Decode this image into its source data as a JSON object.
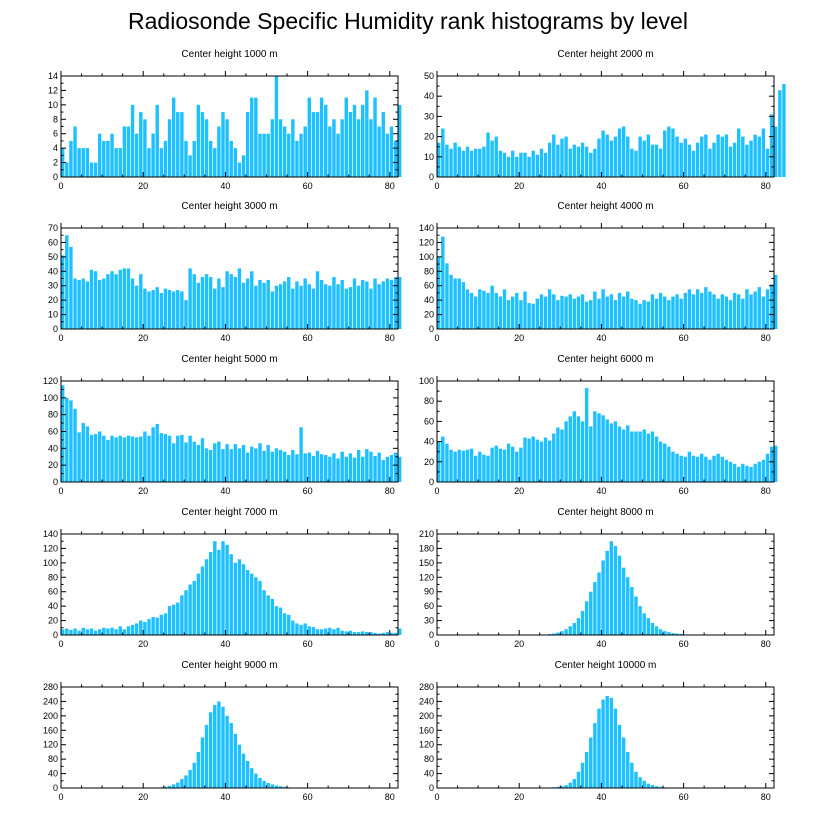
{
  "title": "Radiosonde Specific Humidity rank histograms by level",
  "bar_color": "#1ec0ff",
  "chart_data": [
    {
      "type": "bar",
      "title": "Center height 1000 m",
      "xlabel": "",
      "ylabel": "",
      "xlim": [
        0,
        82
      ],
      "ylim": [
        0,
        14
      ],
      "xticks": [
        0,
        20,
        40,
        60,
        80
      ],
      "yticks": [
        0,
        2,
        4,
        6,
        8,
        10,
        12,
        14
      ],
      "values": [
        4,
        2,
        5,
        7,
        4,
        4,
        4,
        2,
        2,
        6,
        5,
        5,
        6,
        4,
        4,
        7,
        7,
        10,
        6,
        9,
        8,
        4,
        6,
        10,
        4,
        5,
        8,
        11,
        9,
        9,
        5,
        3,
        5,
        10,
        9,
        8,
        5,
        4,
        7,
        9,
        8,
        5,
        4,
        2,
        3,
        9,
        11,
        11,
        6,
        6,
        6,
        8,
        14,
        8,
        7,
        6,
        8,
        5,
        6,
        7,
        11,
        9,
        9,
        11,
        10,
        7,
        8,
        6,
        8,
        11,
        9,
        10,
        8,
        10,
        12,
        8,
        11,
        7,
        9,
        6,
        7,
        5,
        10
      ]
    },
    {
      "type": "bar",
      "title": "Center height 2000 m",
      "xlabel": "",
      "ylabel": "",
      "xlim": [
        0,
        82
      ],
      "ylim": [
        0,
        50
      ],
      "xticks": [
        0,
        20,
        40,
        60,
        80
      ],
      "yticks": [
        0,
        10,
        20,
        30,
        40,
        50
      ],
      "values": [
        17,
        24,
        16,
        14,
        17,
        15,
        13,
        15,
        13,
        14,
        14,
        15,
        22,
        18,
        20,
        13,
        12,
        10,
        13,
        10,
        12,
        12,
        10,
        13,
        11,
        14,
        12,
        17,
        21,
        16,
        19,
        20,
        14,
        16,
        15,
        17,
        15,
        12,
        14,
        19,
        23,
        21,
        18,
        20,
        24,
        25,
        20,
        14,
        13,
        20,
        18,
        21,
        16,
        16,
        14,
        23,
        25,
        24,
        20,
        17,
        19,
        16,
        13,
        17,
        20,
        21,
        14,
        17,
        21,
        20,
        21,
        15,
        17,
        24,
        20,
        16,
        18,
        21,
        20,
        24,
        14,
        31,
        25,
        43,
        46
      ]
    },
    {
      "type": "bar",
      "title": "Center height 3000 m",
      "xlabel": "",
      "ylabel": "",
      "xlim": [
        0,
        82
      ],
      "ylim": [
        0,
        70
      ],
      "xticks": [
        0,
        20,
        40,
        60,
        80
      ],
      "yticks": [
        0,
        10,
        20,
        30,
        40,
        50,
        60,
        70
      ],
      "values": [
        51,
        65,
        57,
        35,
        34,
        35,
        33,
        41,
        40,
        34,
        35,
        38,
        40,
        38,
        41,
        42,
        42,
        35,
        30,
        38,
        28,
        26,
        27,
        29,
        25,
        28,
        27,
        26,
        27,
        26,
        20,
        42,
        38,
        32,
        36,
        38,
        36,
        28,
        35,
        29,
        40,
        38,
        36,
        42,
        32,
        35,
        40,
        30,
        34,
        32,
        34,
        26,
        30,
        31,
        33,
        36,
        28,
        33,
        30,
        35,
        31,
        28,
        40,
        34,
        31,
        30,
        36,
        31,
        34,
        28,
        29,
        35,
        30,
        34,
        33,
        28,
        35,
        31,
        33,
        35,
        34,
        36,
        36
      ]
    },
    {
      "type": "bar",
      "title": "Center height 4000 m",
      "xlabel": "",
      "ylabel": "",
      "xlim": [
        0,
        82
      ],
      "ylim": [
        0,
        140
      ],
      "xticks": [
        0,
        20,
        40,
        60,
        80
      ],
      "yticks": [
        0,
        20,
        40,
        60,
        80,
        100,
        120,
        140
      ],
      "values": [
        100,
        128,
        91,
        75,
        70,
        70,
        65,
        55,
        50,
        45,
        55,
        53,
        50,
        60,
        50,
        45,
        55,
        40,
        45,
        50,
        40,
        52,
        36,
        35,
        42,
        48,
        45,
        55,
        48,
        40,
        46,
        45,
        48,
        42,
        45,
        48,
        38,
        40,
        52,
        42,
        55,
        45,
        48,
        40,
        50,
        45,
        52,
        42,
        40,
        35,
        40,
        38,
        48,
        42,
        50,
        45,
        40,
        45,
        48,
        42,
        50,
        55,
        48,
        55,
        50,
        58,
        52,
        48,
        42,
        48,
        45,
        40,
        50,
        48,
        42,
        55,
        48,
        52,
        58,
        45,
        55,
        62,
        75
      ]
    },
    {
      "type": "bar",
      "title": "Center height 5000 m",
      "xlabel": "",
      "ylabel": "",
      "xlim": [
        0,
        82
      ],
      "ylim": [
        0,
        120
      ],
      "xticks": [
        0,
        20,
        40,
        60,
        80
      ],
      "yticks": [
        0,
        20,
        40,
        60,
        80,
        100,
        120
      ],
      "values": [
        115,
        100,
        97,
        87,
        59,
        70,
        66,
        56,
        57,
        60,
        55,
        50,
        55,
        53,
        55,
        53,
        55,
        54,
        53,
        54,
        60,
        55,
        65,
        69,
        58,
        57,
        55,
        46,
        55,
        56,
        47,
        55,
        48,
        44,
        52,
        40,
        38,
        46,
        48,
        39,
        45,
        39,
        45,
        40,
        44,
        35,
        42,
        40,
        46,
        37,
        44,
        36,
        40,
        38,
        36,
        32,
        38,
        33,
        65,
        34,
        35,
        31,
        37,
        33,
        32,
        30,
        34,
        28,
        36,
        30,
        34,
        29,
        38,
        30,
        39,
        36,
        31,
        35,
        26,
        30,
        32,
        35,
        30
      ]
    },
    {
      "type": "bar",
      "title": "Center height 6000 m",
      "xlabel": "",
      "ylabel": "",
      "xlim": [
        0,
        82
      ],
      "ylim": [
        0,
        100
      ],
      "xticks": [
        0,
        20,
        40,
        60,
        80
      ],
      "yticks": [
        0,
        20,
        40,
        60,
        80,
        100
      ],
      "values": [
        40,
        45,
        38,
        32,
        30,
        32,
        31,
        32,
        33,
        26,
        30,
        27,
        26,
        34,
        36,
        33,
        32,
        38,
        35,
        30,
        34,
        44,
        43,
        45,
        42,
        40,
        44,
        41,
        48,
        54,
        52,
        60,
        65,
        70,
        65,
        60,
        93,
        55,
        70,
        68,
        66,
        62,
        58,
        60,
        55,
        52,
        56,
        50,
        50,
        50,
        52,
        48,
        50,
        45,
        40,
        38,
        35,
        30,
        28,
        26,
        25,
        30,
        26,
        25,
        28,
        25,
        22,
        26,
        28,
        25,
        22,
        20,
        18,
        15,
        18,
        16,
        15,
        18,
        20,
        22,
        28,
        35,
        36
      ]
    },
    {
      "type": "bar",
      "title": "Center height 7000 m",
      "xlabel": "",
      "ylabel": "",
      "xlim": [
        0,
        82
      ],
      "ylim": [
        0,
        140
      ],
      "xticks": [
        0,
        20,
        40,
        60,
        80
      ],
      "yticks": [
        0,
        20,
        40,
        60,
        80,
        100,
        120,
        140
      ],
      "values": [
        8,
        9,
        7,
        9,
        6,
        10,
        8,
        9,
        6,
        8,
        10,
        9,
        10,
        8,
        12,
        8,
        12,
        14,
        16,
        20,
        18,
        22,
        25,
        24,
        28,
        30,
        40,
        42,
        45,
        55,
        62,
        70,
        75,
        85,
        95,
        105,
        115,
        130,
        118,
        130,
        125,
        112,
        100,
        105,
        98,
        90,
        85,
        80,
        75,
        62,
        55,
        50,
        40,
        38,
        30,
        28,
        20,
        16,
        14,
        16,
        12,
        11,
        8,
        8,
        9,
        10,
        8,
        10,
        6,
        5,
        6,
        4,
        4,
        5,
        4,
        4,
        3,
        2,
        3,
        4,
        3,
        3,
        9
      ]
    },
    {
      "type": "bar",
      "title": "Center height 8000 m",
      "xlabel": "",
      "ylabel": "",
      "xlim": [
        0,
        82
      ],
      "ylim": [
        0,
        210
      ],
      "xticks": [
        0,
        20,
        40,
        60,
        80
      ],
      "yticks": [
        0,
        30,
        60,
        90,
        120,
        150,
        180,
        210
      ],
      "values": [
        0,
        0,
        0,
        0,
        0,
        0,
        0,
        0,
        0,
        0,
        0,
        0,
        0,
        0,
        0,
        0,
        0,
        0,
        0,
        0,
        0,
        0,
        0,
        0,
        0,
        0,
        1,
        2,
        3,
        5,
        8,
        12,
        18,
        25,
        35,
        50,
        70,
        90,
        110,
        130,
        155,
        175,
        195,
        185,
        165,
        140,
        120,
        100,
        80,
        60,
        45,
        35,
        25,
        18,
        12,
        8,
        6,
        4,
        3,
        2,
        1,
        1,
        0,
        0,
        0,
        0,
        0,
        0,
        0,
        0,
        0,
        0,
        0,
        0,
        0,
        0,
        0,
        0,
        0,
        0,
        0,
        0,
        0
      ]
    },
    {
      "type": "bar",
      "title": "Center height 9000 m",
      "xlabel": "",
      "ylabel": "",
      "xlim": [
        0,
        82
      ],
      "ylim": [
        0,
        280
      ],
      "xticks": [
        0,
        20,
        40,
        60,
        80
      ],
      "yticks": [
        0,
        40,
        80,
        120,
        160,
        200,
        240,
        280
      ],
      "values": [
        0,
        0,
        0,
        0,
        0,
        0,
        0,
        0,
        0,
        0,
        0,
        0,
        0,
        0,
        0,
        0,
        0,
        0,
        0,
        0,
        0,
        0,
        0,
        0,
        2,
        4,
        6,
        10,
        15,
        25,
        35,
        50,
        70,
        100,
        140,
        175,
        210,
        230,
        240,
        225,
        200,
        180,
        150,
        120,
        95,
        75,
        55,
        40,
        28,
        20,
        14,
        10,
        7,
        5,
        3,
        2,
        1,
        1,
        0,
        0,
        0,
        0,
        0,
        0,
        0,
        0,
        0,
        0,
        0,
        0,
        0,
        0,
        0,
        0,
        0,
        0,
        0,
        0,
        0,
        0,
        0,
        0,
        0
      ]
    },
    {
      "type": "bar",
      "title": "Center height 10000 m",
      "xlabel": "",
      "ylabel": "",
      "xlim": [
        0,
        82
      ],
      "ylim": [
        0,
        280
      ],
      "xticks": [
        0,
        20,
        40,
        60,
        80
      ],
      "yticks": [
        0,
        40,
        80,
        120,
        160,
        200,
        240,
        280
      ],
      "values": [
        0,
        0,
        0,
        0,
        0,
        0,
        0,
        0,
        0,
        0,
        0,
        0,
        0,
        0,
        0,
        0,
        0,
        0,
        0,
        0,
        0,
        0,
        0,
        0,
        0,
        0,
        0,
        1,
        2,
        3,
        5,
        8,
        15,
        25,
        45,
        70,
        100,
        140,
        180,
        220,
        245,
        255,
        250,
        220,
        175,
        140,
        100,
        70,
        45,
        30,
        20,
        12,
        8,
        5,
        3,
        2,
        1,
        1,
        0,
        0,
        0,
        0,
        0,
        0,
        0,
        0,
        0,
        0,
        0,
        0,
        0,
        0,
        0,
        0,
        0,
        0,
        0,
        0,
        0,
        0,
        0,
        0,
        0
      ]
    }
  ]
}
